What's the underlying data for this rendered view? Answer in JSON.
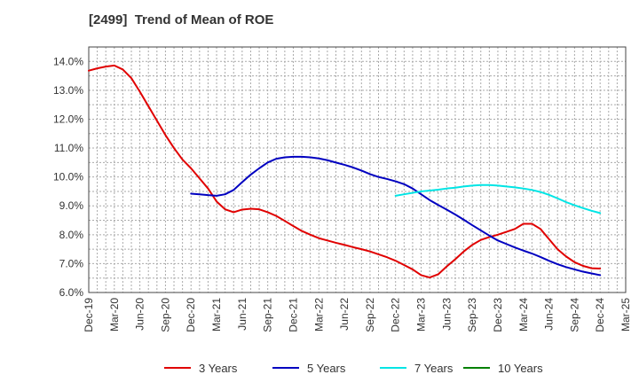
{
  "chart_data": {
    "type": "line",
    "title": "[2499]  Trend of Mean of ROE",
    "xlabel": "",
    "ylabel": "",
    "x_ticks": [
      "Dec-19",
      "Mar-20",
      "Jun-20",
      "Sep-20",
      "Dec-20",
      "Mar-21",
      "Jun-21",
      "Sep-21",
      "Dec-21",
      "Mar-22",
      "Jun-22",
      "Sep-22",
      "Dec-22",
      "Mar-23",
      "Jun-23",
      "Sep-23",
      "Dec-23",
      "Mar-24",
      "Jun-24",
      "Sep-24",
      "Dec-24",
      "Mar-25"
    ],
    "y_ticks": [
      "6.0%",
      "7.0%",
      "8.0%",
      "9.0%",
      "10.0%",
      "11.0%",
      "12.0%",
      "13.0%",
      "14.0%"
    ],
    "ylim": [
      6.0,
      14.5
    ],
    "grid": true,
    "legend_position": "bottom",
    "series": [
      {
        "name": "3 Years",
        "color": "#e00000",
        "points": [
          [
            "Dec-19",
            13.68
          ],
          [
            "Jan-20",
            13.76
          ],
          [
            "Feb-20",
            13.82
          ],
          [
            "Mar-20",
            13.86
          ],
          [
            "Apr-20",
            13.72
          ],
          [
            "May-20",
            13.42
          ],
          [
            "Jun-20",
            12.95
          ],
          [
            "Jul-20",
            12.45
          ],
          [
            "Aug-20",
            11.95
          ],
          [
            "Sep-20",
            11.45
          ],
          [
            "Oct-20",
            11.0
          ],
          [
            "Nov-20",
            10.6
          ],
          [
            "Dec-20",
            10.3
          ],
          [
            "Jan-21",
            9.95
          ],
          [
            "Feb-21",
            9.6
          ],
          [
            "Mar-21",
            9.15
          ],
          [
            "Apr-21",
            8.88
          ],
          [
            "May-21",
            8.78
          ],
          [
            "Jun-21",
            8.87
          ],
          [
            "Jul-21",
            8.9
          ],
          [
            "Aug-21",
            8.88
          ],
          [
            "Sep-21",
            8.78
          ],
          [
            "Oct-21",
            8.65
          ],
          [
            "Nov-21",
            8.48
          ],
          [
            "Dec-21",
            8.3
          ],
          [
            "Jan-22",
            8.13
          ],
          [
            "Feb-22",
            8.0
          ],
          [
            "Mar-22",
            7.88
          ],
          [
            "Apr-22",
            7.8
          ],
          [
            "May-22",
            7.72
          ],
          [
            "Jun-22",
            7.65
          ],
          [
            "Jul-22",
            7.57
          ],
          [
            "Aug-22",
            7.5
          ],
          [
            "Sep-22",
            7.42
          ],
          [
            "Oct-22",
            7.32
          ],
          [
            "Nov-22",
            7.22
          ],
          [
            "Dec-22",
            7.1
          ],
          [
            "Jan-23",
            6.95
          ],
          [
            "Feb-23",
            6.8
          ],
          [
            "Mar-23",
            6.6
          ],
          [
            "Apr-23",
            6.52
          ],
          [
            "May-23",
            6.63
          ],
          [
            "Jun-23",
            6.9
          ],
          [
            "Jul-23",
            7.15
          ],
          [
            "Aug-23",
            7.42
          ],
          [
            "Sep-23",
            7.65
          ],
          [
            "Oct-23",
            7.82
          ],
          [
            "Nov-23",
            7.92
          ],
          [
            "Dec-23",
            8.0
          ],
          [
            "Jan-24",
            8.1
          ],
          [
            "Feb-24",
            8.2
          ],
          [
            "Mar-24",
            8.38
          ],
          [
            "Apr-24",
            8.38
          ],
          [
            "May-24",
            8.2
          ],
          [
            "Jun-24",
            7.85
          ],
          [
            "Jul-24",
            7.5
          ],
          [
            "Aug-24",
            7.25
          ],
          [
            "Sep-24",
            7.05
          ],
          [
            "Oct-24",
            6.92
          ],
          [
            "Nov-24",
            6.84
          ],
          [
            "Dec-24",
            6.83
          ]
        ]
      },
      {
        "name": "5 Years",
        "color": "#0000c0",
        "points": [
          [
            "Dec-20",
            9.42
          ],
          [
            "Jan-21",
            9.4
          ],
          [
            "Feb-21",
            9.37
          ],
          [
            "Mar-21",
            9.35
          ],
          [
            "Apr-21",
            9.4
          ],
          [
            "May-21",
            9.55
          ],
          [
            "Jun-21",
            9.82
          ],
          [
            "Jul-21",
            10.08
          ],
          [
            "Aug-21",
            10.3
          ],
          [
            "Sep-21",
            10.5
          ],
          [
            "Oct-21",
            10.63
          ],
          [
            "Nov-21",
            10.68
          ],
          [
            "Dec-21",
            10.7
          ],
          [
            "Jan-22",
            10.7
          ],
          [
            "Feb-22",
            10.68
          ],
          [
            "Mar-22",
            10.64
          ],
          [
            "Apr-22",
            10.58
          ],
          [
            "May-22",
            10.5
          ],
          [
            "Jun-22",
            10.42
          ],
          [
            "Jul-22",
            10.33
          ],
          [
            "Aug-22",
            10.22
          ],
          [
            "Sep-22",
            10.1
          ],
          [
            "Oct-22",
            10.0
          ],
          [
            "Nov-22",
            9.93
          ],
          [
            "Dec-22",
            9.85
          ],
          [
            "Jan-23",
            9.75
          ],
          [
            "Feb-23",
            9.6
          ],
          [
            "Mar-23",
            9.4
          ],
          [
            "Apr-23",
            9.2
          ],
          [
            "May-23",
            9.03
          ],
          [
            "Jun-23",
            8.87
          ],
          [
            "Jul-23",
            8.7
          ],
          [
            "Aug-23",
            8.52
          ],
          [
            "Sep-23",
            8.33
          ],
          [
            "Oct-23",
            8.15
          ],
          [
            "Nov-23",
            7.97
          ],
          [
            "Dec-23",
            7.8
          ],
          [
            "Jan-24",
            7.68
          ],
          [
            "Feb-24",
            7.56
          ],
          [
            "Mar-24",
            7.45
          ],
          [
            "Apr-24",
            7.35
          ],
          [
            "May-24",
            7.23
          ],
          [
            "Jun-24",
            7.1
          ],
          [
            "Jul-24",
            6.98
          ],
          [
            "Aug-24",
            6.88
          ],
          [
            "Sep-24",
            6.8
          ],
          [
            "Oct-24",
            6.72
          ],
          [
            "Nov-24",
            6.66
          ],
          [
            "Dec-24",
            6.6
          ]
        ]
      },
      {
        "name": "7 Years",
        "color": "#00e5e5",
        "points": [
          [
            "Dec-22",
            9.35
          ],
          [
            "Jan-23",
            9.4
          ],
          [
            "Feb-23",
            9.45
          ],
          [
            "Mar-23",
            9.5
          ],
          [
            "Apr-23",
            9.53
          ],
          [
            "May-23",
            9.56
          ],
          [
            "Jun-23",
            9.6
          ],
          [
            "Jul-23",
            9.63
          ],
          [
            "Aug-23",
            9.67
          ],
          [
            "Sep-23",
            9.7
          ],
          [
            "Oct-23",
            9.72
          ],
          [
            "Nov-23",
            9.72
          ],
          [
            "Dec-23",
            9.7
          ],
          [
            "Jan-24",
            9.67
          ],
          [
            "Feb-24",
            9.64
          ],
          [
            "Mar-24",
            9.6
          ],
          [
            "Apr-24",
            9.55
          ],
          [
            "May-24",
            9.48
          ],
          [
            "Jun-24",
            9.38
          ],
          [
            "Jul-24",
            9.26
          ],
          [
            "Aug-24",
            9.13
          ],
          [
            "Sep-24",
            9.02
          ],
          [
            "Oct-24",
            8.92
          ],
          [
            "Nov-24",
            8.83
          ],
          [
            "Dec-24",
            8.75
          ]
        ]
      },
      {
        "name": "10 Years",
        "color": "#008000",
        "points": []
      }
    ]
  }
}
